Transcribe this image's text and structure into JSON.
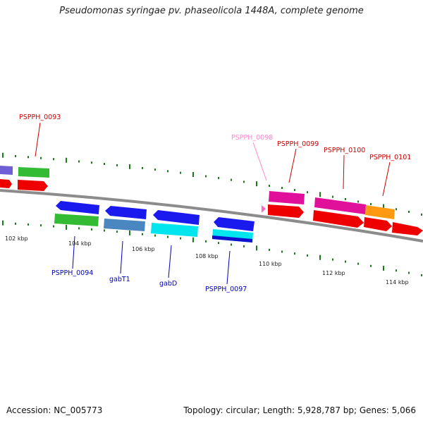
{
  "title": "Pseudomonas syringae pv. phaseolicola 1448A, complete genome",
  "footer": {
    "accession": "Accession: NC_005773",
    "topology": "Topology: circular; Length: 5,928,787 bp; Genes: 5,066"
  },
  "colors": {
    "backbone": "#8a8a8a",
    "forward_label": "#cc0000",
    "reverse_label": "#0000bb",
    "tick": "#1a7a1a"
  },
  "scale_labels": [
    "102 kbp",
    "104 kbp",
    "106 kbp",
    "108 kbp",
    "110 kbp",
    "112 kbp",
    "114 kbp"
  ],
  "gene_labels": {
    "PSPPH_0093": "PSPPH_0093",
    "PSPPH_0094": "PSPPH_0094",
    "gabT1": "gabT1",
    "gabD": "gabD",
    "PSPPH_0097": "PSPPH_0097",
    "PSPPH_0098": "PSPPH_0098",
    "PSPPH_0099": "PSPPH_0099",
    "PSPPH_0100": "PSPPH_0100",
    "PSPPH_0101": "PSPPH_0101"
  }
}
